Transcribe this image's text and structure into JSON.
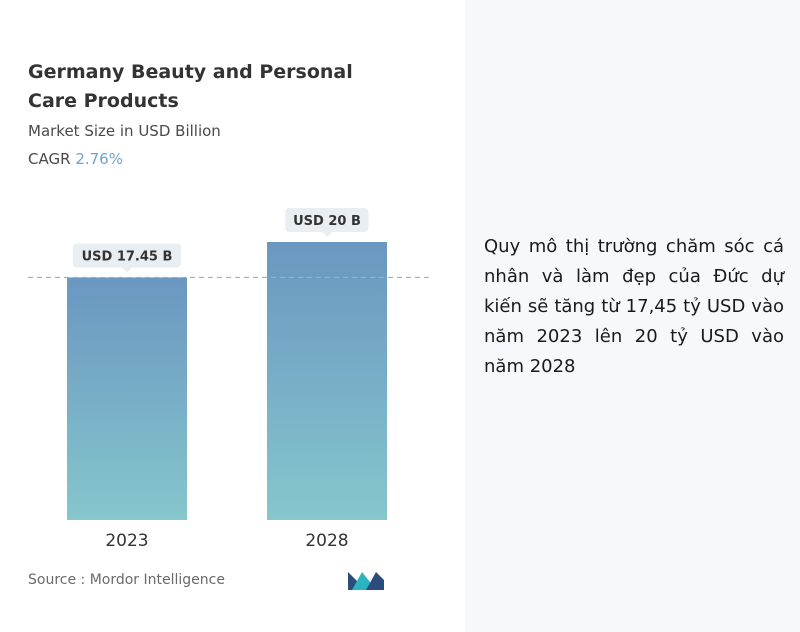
{
  "chart_data": {
    "type": "bar",
    "title": "Germany Beauty and Personal Care Products",
    "subtitle": "Market Size in USD Billion",
    "cagr_label": "CAGR",
    "cagr_value": "2.76%",
    "categories": [
      "2023",
      "2028"
    ],
    "values": [
      17.45,
      20
    ],
    "data_labels": [
      "USD 17.45 B",
      "USD 20 B"
    ],
    "ylim": [
      0,
      20
    ],
    "reference_line_value": 17.45,
    "grid": false,
    "colors": {
      "bar_top": "#6a97c1",
      "bar_bottom": "#86c6cc",
      "label_bg": "#e9eef2",
      "reference_line": "#8fb3cc"
    }
  },
  "source": "Source :  Mordor Intelligence",
  "logo": {
    "icon": "mordor-intelligence-logo-icon",
    "colors": [
      "#2a4d7c",
      "#2bb3c0"
    ]
  },
  "description": "Quy mô thị trường chăm sóc cá nhân và làm đẹp của Đức dự kiến sẽ tăng từ 17,45 tỷ USD vào năm 2023 lên 20 tỷ USD vào năm 2028"
}
